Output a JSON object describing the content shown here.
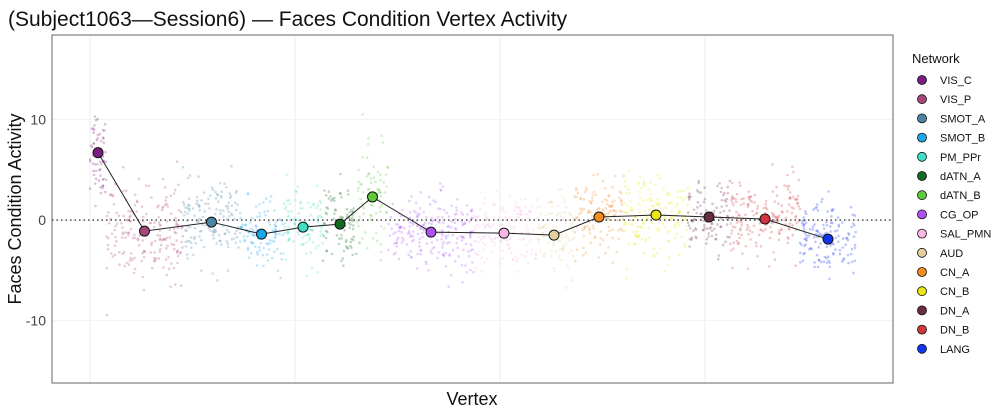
{
  "chart_data": {
    "type": "scatter",
    "title": "(Subject1063—Session6) — Faces Condition Vertex Activity",
    "xlabel": "Vertex",
    "ylabel": "Faces Condition Activity",
    "ylim": [
      -16.2,
      18.4
    ],
    "xlim": [
      -380,
      8030
    ],
    "yticks": [
      -10,
      0,
      10
    ],
    "ytick_labels": [
      "-10",
      "0",
      "10"
    ],
    "reference_line_y": 0,
    "grid": true,
    "legend_title": "Network",
    "legend_position": "right",
    "networks": [
      {
        "name": "VIS_C",
        "color": "#7B1C7F",
        "start": 0,
        "end": 160,
        "mean": 6.7,
        "sd": 2.2
      },
      {
        "name": "VIS_P",
        "color": "#A8457A",
        "start": 160,
        "end": 930,
        "mean": -1.1,
        "sd": 2.4
      },
      {
        "name": "SMOT_A",
        "color": "#4A86A6",
        "start": 930,
        "end": 1500,
        "mean": -0.2,
        "sd": 2.0
      },
      {
        "name": "SMOT_B",
        "color": "#1AA7EC",
        "start": 1500,
        "end": 1930,
        "mean": -1.4,
        "sd": 1.7
      },
      {
        "name": "PM_PPr",
        "color": "#3FE0C5",
        "start": 1930,
        "end": 2330,
        "mean": -0.7,
        "sd": 1.7
      },
      {
        "name": "dATN_A",
        "color": "#116A1F",
        "start": 2330,
        "end": 2670,
        "mean": -0.4,
        "sd": 2.0
      },
      {
        "name": "dATN_B",
        "color": "#5FCB3C",
        "start": 2670,
        "end": 2980,
        "mean": 2.3,
        "sd": 2.6
      },
      {
        "name": "CG_OP",
        "color": "#B051F5",
        "start": 2980,
        "end": 3840,
        "mean": -1.2,
        "sd": 1.9
      },
      {
        "name": "SAL_PMN",
        "color": "#F9B7E6",
        "start": 3840,
        "end": 4440,
        "mean": -1.3,
        "sd": 1.9
      },
      {
        "name": "AUD",
        "color": "#E3D09C",
        "start": 4440,
        "end": 4840,
        "mean": -1.5,
        "sd": 2.0
      },
      {
        "name": "CN_A",
        "color": "#F28C1F",
        "start": 4840,
        "end": 5340,
        "mean": 0.3,
        "sd": 1.9
      },
      {
        "name": "CN_B",
        "color": "#E8E613",
        "start": 5340,
        "end": 5980,
        "mean": 0.5,
        "sd": 1.9
      },
      {
        "name": "DN_A",
        "color": "#6A2B45",
        "start": 5980,
        "end": 6400,
        "mean": 0.3,
        "sd": 1.8
      },
      {
        "name": "DN_B",
        "color": "#D2373F",
        "start": 6400,
        "end": 7100,
        "mean": 0.1,
        "sd": 2.0
      },
      {
        "name": "LANG",
        "color": "#1233F0",
        "start": 7100,
        "end": 7660,
        "mean": -1.9,
        "sd": 1.9
      }
    ]
  }
}
